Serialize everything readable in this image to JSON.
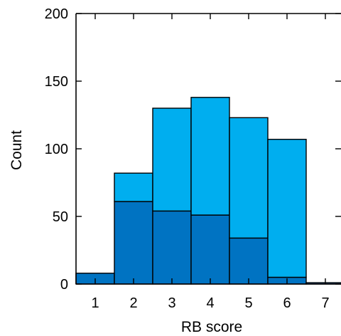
{
  "chart_data": {
    "type": "bar",
    "stacked": true,
    "categories": [
      "1",
      "2",
      "3",
      "4",
      "5",
      "6",
      "7"
    ],
    "series": [
      {
        "values": [
          8,
          61,
          54,
          51,
          34,
          5,
          1
        ],
        "color": "#0073c2"
      },
      {
        "values": [
          0,
          21,
          76,
          87,
          89,
          102,
          0
        ],
        "color": "#00aeef"
      }
    ],
    "xlabel": "RB score",
    "ylabel": "Count",
    "ylim": [
      0,
      200
    ],
    "yticks": [
      "0",
      "50",
      "100",
      "150",
      "200"
    ],
    "grid": false,
    "edge_color": "#000000"
  }
}
